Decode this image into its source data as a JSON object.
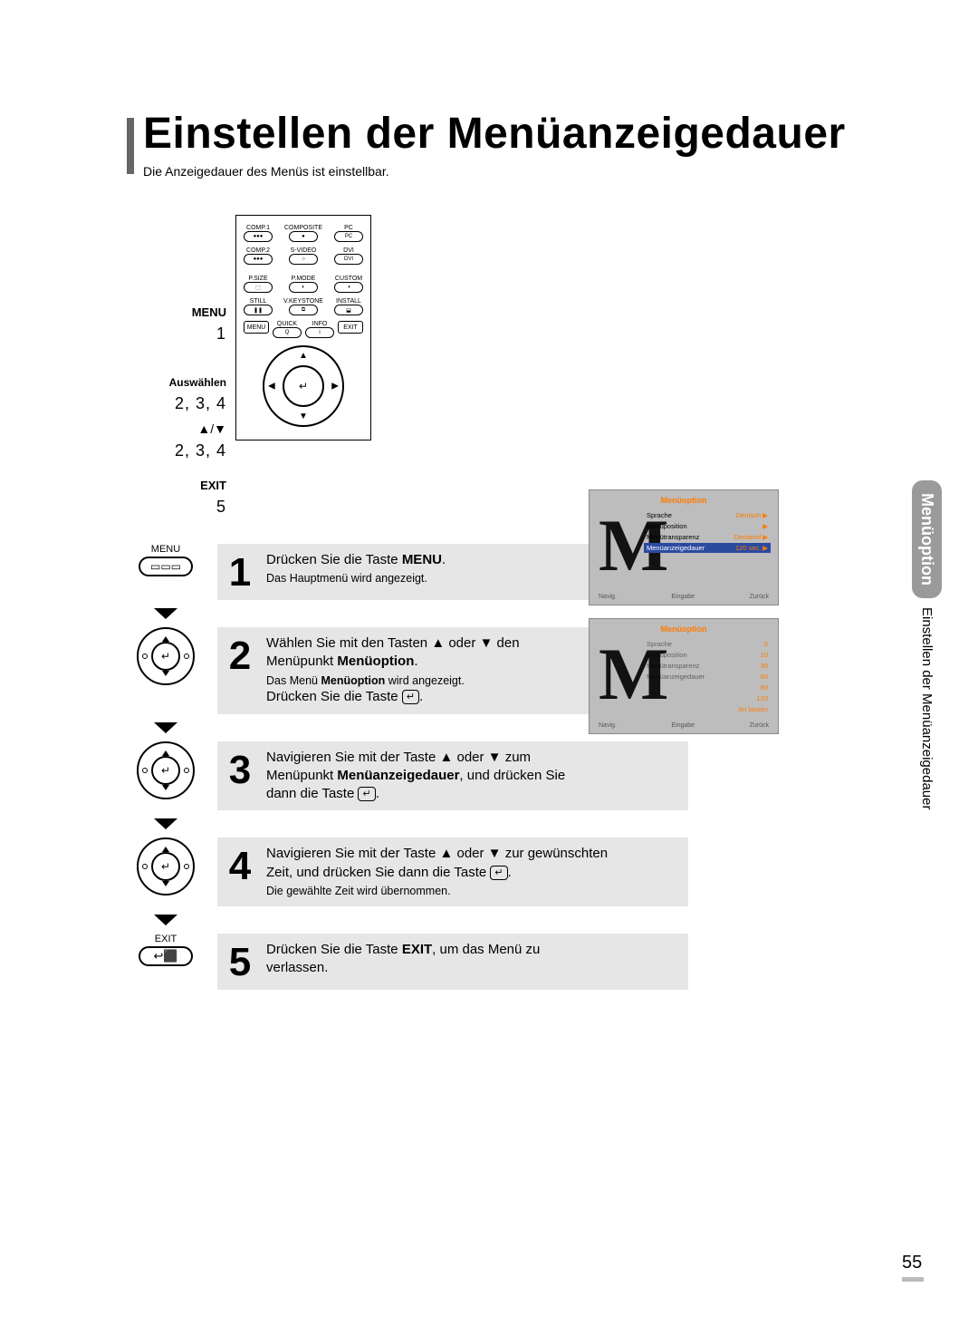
{
  "title": "Einstellen der Menüanzeigedauer",
  "subtitle": "Die Anzeigedauer des Menüs ist einstellbar.",
  "side_tab": {
    "main": "Menüoption",
    "sub": "Einstellen der Menüanzeigedauer"
  },
  "page_number": "55",
  "remote_labels": {
    "menu": "MENU",
    "menu_num": "1",
    "select": "Auswählen",
    "select_num": "2, 3, 4",
    "arrows": "▲/▼",
    "arrows_num": "2, 3, 4",
    "exit": "EXIT",
    "exit_num": "5"
  },
  "remote_buttons": {
    "row1": [
      "COMP.1",
      "COMPOSITE",
      "PC"
    ],
    "row2": [
      "COMP.2",
      "S-VIDEO",
      "DVI"
    ],
    "row3": [
      "P.SIZE",
      "P.MODE",
      "CUSTOM"
    ],
    "row4": [
      "STILL",
      "V.KEYSTONE",
      "INSTALL"
    ],
    "angled": [
      "MENU",
      "QUICK",
      "INFO",
      "EXIT"
    ]
  },
  "steps": {
    "s1": {
      "num": "1",
      "icon_label": "MENU",
      "line1a": "Drücken Sie die Taste ",
      "line1b": "MENU",
      "line1c": ".",
      "sub": "Das Hauptmenü wird angezeigt."
    },
    "s2": {
      "num": "2",
      "line1": "Wählen Sie mit den Tasten ▲ oder ▼ den",
      "line2a": "Menüpunkt ",
      "line2b": "Menüoption",
      "line2c": ".",
      "sub_a": "Das Menü ",
      "sub_b": "Menüoption",
      "sub_c": " wird angezeigt.",
      "line3": "Drücken Sie die Taste "
    },
    "s3": {
      "num": "3",
      "line1": "Navigieren Sie mit der Taste ▲ oder ▼ zum",
      "line2a": "Menüpunkt ",
      "line2b": "Menüanzeigedauer",
      "line2c": ", und drücken Sie",
      "line3": "dann die Taste "
    },
    "s4": {
      "num": "4",
      "line1": "Navigieren Sie mit der Taste ▲ oder ▼ zur gewünschten",
      "line2": "Zeit, und drücken Sie dann die Taste ",
      "sub": "Die gewählte Zeit wird übernommen."
    },
    "s5": {
      "num": "5",
      "icon_label": "EXIT",
      "line1a": "Drücken Sie die Taste ",
      "line1b": "EXIT",
      "line1c": ", um das Menü zu",
      "line2": "verlassen."
    }
  },
  "enter_glyph": "↵",
  "osd1": {
    "title": "Menüoption",
    "rows": [
      {
        "label": "Sprache",
        "value": "Deutsch",
        "arrow": "▶",
        "hl": false
      },
      {
        "label": "Menüposition",
        "value": "",
        "arrow": "▶",
        "hl": false
      },
      {
        "label": "Menütransparenz",
        "value": "Deckend",
        "arrow": "▶",
        "hl": false
      },
      {
        "label": "Menüanzeigedauer",
        "value": "120 sec.",
        "arrow": "▶",
        "hl": true
      }
    ],
    "footer": [
      "Navig.",
      "Eingabe",
      "Zurück"
    ]
  },
  "osd2": {
    "title": "Menüoption",
    "left_labels": [
      "Sprache",
      "Menüposition",
      "Menütransparenz",
      "Menüanzeigedauer"
    ],
    "values": [
      "5",
      "10",
      "30",
      "60",
      "90",
      "120",
      "An lassen"
    ],
    "footer": [
      "Navig.",
      "Eingabe",
      "Zurück"
    ]
  },
  "colors": {
    "gray_box": "#e6e6e6",
    "osd_bg": "#bdbdbd",
    "osd_accent": "#ff7b00",
    "osd_highlight": "#2b4aa0",
    "side_pill": "#9a9a9a"
  }
}
